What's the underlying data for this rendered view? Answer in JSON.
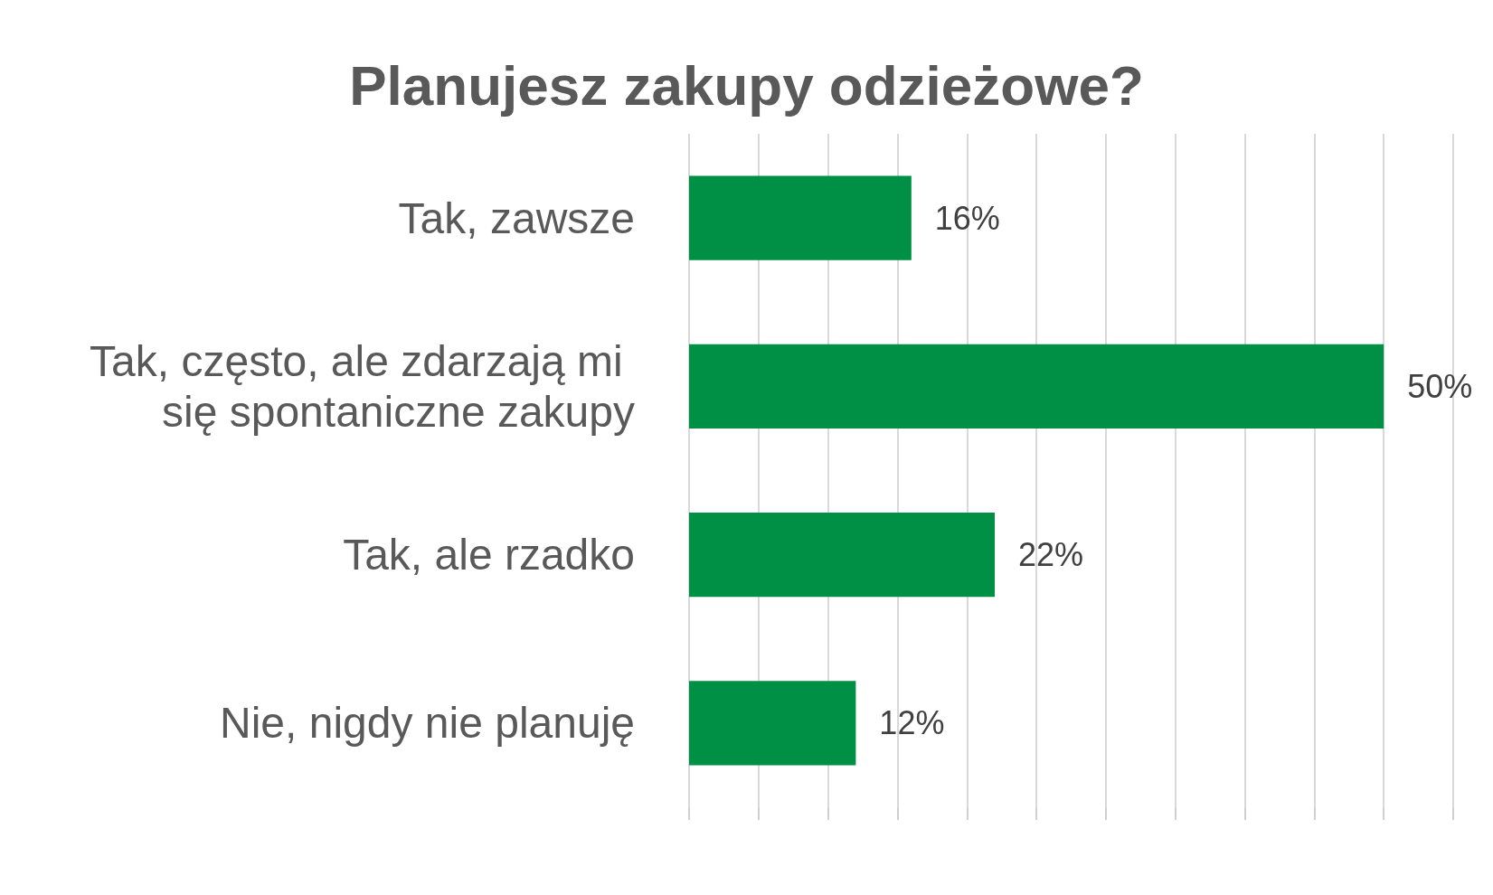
{
  "chart_data": {
    "type": "bar",
    "orientation": "horizontal",
    "title": "Planujesz zakupy odzieżowe?",
    "categories": [
      "Tak, zawsze",
      "Tak, często, ale zdarzają mi się spontaniczne zakupy",
      "Tak, ale rzadko",
      "Nie, nigdy nie planuję"
    ],
    "values": [
      16,
      50,
      22,
      12
    ],
    "value_labels": [
      "16%",
      "50%",
      "22%",
      "12%"
    ],
    "color": "#009045",
    "xlim": [
      0,
      55
    ],
    "xticks": [
      {
        "value": 0,
        "label": null
      },
      {
        "value": 5,
        "label": null
      },
      {
        "value": 10,
        "label": null
      },
      {
        "value": 15,
        "label": null
      },
      {
        "value": 20,
        "label": null
      },
      {
        "value": 25,
        "label": null
      },
      {
        "value": 30,
        "label": null
      },
      {
        "value": 35,
        "label": null
      },
      {
        "value": 40,
        "label": null
      },
      {
        "value": 45,
        "label": null
      },
      {
        "value": 50,
        "label": null
      },
      {
        "value": 55,
        "label": null
      }
    ],
    "grid": "x",
    "tick_labels": "y"
  }
}
